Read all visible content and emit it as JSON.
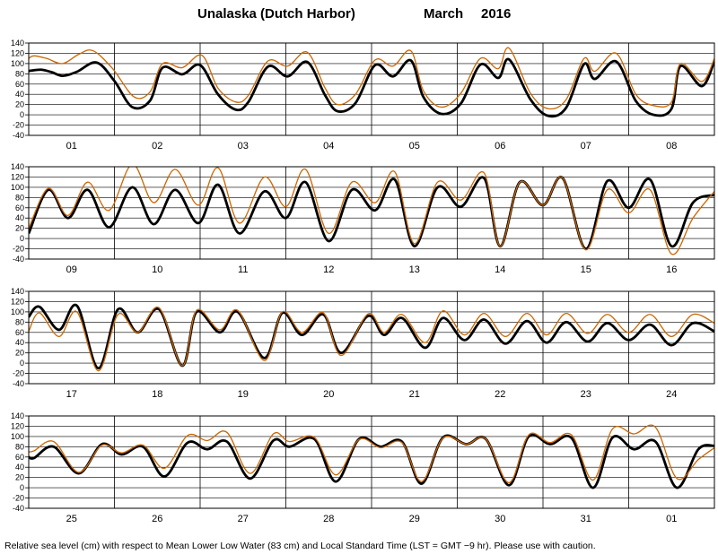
{
  "chart_data": {
    "type": "line",
    "title": "Unalaska (Dutch Harbor)",
    "month": "March",
    "year": "2016",
    "ylabel": "",
    "ylim": [
      -40,
      140
    ],
    "yticks": [
      -40,
      -20,
      0,
      20,
      40,
      60,
      80,
      100,
      120,
      140
    ],
    "grid": true,
    "footnote": "Relative sea level (cm) with respect to Mean Lower Low Water (83 cm) and Local Standard Time (LST = GMT −9 hr). Please use with caution.",
    "panels": [
      {
        "days": [
          "01",
          "02",
          "03",
          "04",
          "05",
          "06",
          "07",
          "08"
        ],
        "series": [
          {
            "color": "#000000",
            "x": [
              0,
              0.5,
              3.5,
              6.5,
              9.5,
              13.5,
              19.0,
              24.0,
              29.0,
              34.0,
              37.5,
              43.0,
              48.0,
              53.0,
              58.0,
              61.5,
              67.0,
              72.5,
              78.0,
              83.0,
              86.5,
              91.5,
              97.0,
              102.0,
              107.0,
              110.5,
              115.5,
              121.0,
              126.5,
              131.5,
              134.5,
              140.5,
              145.5,
              150.5,
              155.5,
              158.5,
              164.5,
              170.0,
              175.0,
              180.0,
              182.5,
              188.5,
              192.0
            ],
            "y": [
              85,
              86,
              88,
              83,
              76,
              84,
              102,
              66,
              15,
              28,
              92,
              79,
              97,
              40,
              10,
              25,
              94,
              75,
              103,
              38,
              7,
              23,
              97,
              75,
              106,
              35,
              2,
              22,
              98,
              72,
              108,
              30,
              -2,
              14,
              99,
              70,
              104,
              27,
              0,
              12,
              95,
              56,
              105
            ]
          },
          {
            "color": "#cc6600",
            "x": [
              0,
              1.5,
              5.0,
              9.5,
              14.0,
              18.0,
              23.5,
              29.5,
              34.0,
              37.5,
              43.0,
              48.5,
              53.0,
              58.0,
              61.5,
              67.0,
              72.5,
              78.0,
              83.0,
              86.5,
              91.5,
              97.0,
              102.0,
              107.0,
              110.5,
              115.5,
              121.0,
              126.5,
              131.5,
              134.5,
              140.5,
              145.5,
              150.5,
              155.5,
              158.5,
              164.5,
              170.0,
              175.0,
              180.0,
              182.5,
              188.5,
              192.0
            ],
            "y": [
              110,
              115,
              110,
              100,
              118,
              125,
              90,
              35,
              45,
              100,
              92,
              116,
              52,
              25,
              38,
              105,
              95,
              122,
              52,
              20,
              40,
              107,
              95,
              125,
              47,
              15,
              42,
              110,
              90,
              130,
              42,
              12,
              30,
              110,
              85,
              120,
              40,
              18,
              25,
              100,
              65,
              110
            ]
          }
        ]
      },
      {
        "days": [
          "09",
          "10",
          "11",
          "12",
          "13",
          "14",
          "15",
          "16"
        ],
        "series": [
          {
            "color": "#000000",
            "x": [
              0,
              5.5,
              11.0,
              16.5,
              22.5,
              29.0,
              35.0,
              41.0,
              47.5,
              53.0,
              59.0,
              66.0,
              72.0,
              77.5,
              84.0,
              90.5,
              97.0,
              102.5,
              108.0,
              114.5,
              121.0,
              127.5,
              132.0,
              137.5,
              144.0,
              149.5,
              156.0,
              162.0,
              168.0,
              174.0,
              180.0,
              186.0,
              192.0
            ],
            "y": [
              10,
              95,
              40,
              95,
              22,
              100,
              28,
              95,
              30,
              105,
              10,
              92,
              40,
              110,
              -5,
              95,
              55,
              115,
              -15,
              100,
              62,
              118,
              -15,
              110,
              65,
              118,
              -20,
              112,
              60,
              115,
              -15,
              70,
              85
            ]
          },
          {
            "color": "#cc6600",
            "x": [
              0,
              5.5,
              11.0,
              16.5,
              22.5,
              29.0,
              35.0,
              41.0,
              47.5,
              53.0,
              59.0,
              66.0,
              72.0,
              77.5,
              84.0,
              90.5,
              97.0,
              102.5,
              108.0,
              114.5,
              121.0,
              127.5,
              132.0,
              137.5,
              144.0,
              149.5,
              156.0,
              162.0,
              168.0,
              174.0,
              180.0,
              186.0,
              192.0
            ],
            "y": [
              20,
              98,
              45,
              110,
              55,
              145,
              70,
              135,
              65,
              138,
              30,
              120,
              62,
              135,
              10,
              110,
              70,
              130,
              -10,
              110,
              75,
              128,
              -15,
              110,
              65,
              118,
              -22,
              95,
              50,
              95,
              -30,
              40,
              92
            ]
          }
        ]
      },
      {
        "days": [
          "17",
          "18",
          "19",
          "20",
          "21",
          "22",
          "23",
          "24"
        ],
        "series": [
          {
            "color": "#000000",
            "x": [
              0,
              3.0,
              8.5,
              13.5,
              19.5,
              25.0,
              30.5,
              36.5,
              43.0,
              47.0,
              53.5,
              58.5,
              66.0,
              71.0,
              76.5,
              82.5,
              87.5,
              95.0,
              99.5,
              104.5,
              111.0,
              116.0,
              122.0,
              127.5,
              133.5,
              139.5,
              145.0,
              150.5,
              156.5,
              162.0,
              168.0,
              174.0,
              180.0,
              186.0,
              192.0
            ],
            "y": [
              90,
              110,
              65,
              112,
              -10,
              105,
              60,
              105,
              -5,
              100,
              60,
              100,
              10,
              98,
              55,
              95,
              20,
              92,
              55,
              88,
              30,
              88,
              45,
              85,
              38,
              82,
              40,
              80,
              42,
              78,
              45,
              75,
              35,
              78,
              62
            ]
          },
          {
            "color": "#cc6600",
            "x": [
              0,
              3.0,
              8.5,
              13.5,
              19.5,
              25.0,
              30.5,
              36.5,
              43.0,
              47.0,
              53.5,
              58.5,
              66.0,
              71.0,
              76.5,
              82.5,
              87.5,
              95.0,
              99.5,
              104.5,
              111.0,
              116.0,
              122.0,
              127.5,
              133.5,
              139.5,
              145.0,
              150.5,
              156.5,
              162.0,
              168.0,
              174.0,
              180.0,
              186.0,
              192.0
            ],
            "y": [
              62,
              98,
              52,
              100,
              -15,
              95,
              60,
              108,
              -5,
              103,
              65,
              103,
              5,
              100,
              60,
              98,
              15,
              96,
              60,
              95,
              40,
              102,
              55,
              97,
              52,
              97,
              55,
              97,
              58,
              95,
              60,
              95,
              52,
              95,
              78
            ]
          }
        ]
      },
      {
        "days": [
          "25",
          "26",
          "27",
          "28",
          "29",
          "30",
          "31",
          "01"
        ],
        "series": [
          {
            "color": "#000000",
            "x": [
              0,
              1.5,
              7.0,
              14.0,
              20.5,
              26.0,
              32.0,
              38.0,
              44.5,
              50.0,
              55.5,
              62.0,
              68.5,
              73.0,
              80.0,
              86.0,
              92.5,
              98.5,
              104.5,
              110.0,
              116.0,
              122.5,
              128.0,
              134.5,
              140.0,
              146.0,
              152.0,
              158.0,
              163.5,
              169.5,
              175.5,
              181.5,
              187.5,
              192.0
            ],
            "y": [
              60,
              58,
              80,
              28,
              85,
              65,
              80,
              22,
              88,
              75,
              90,
              18,
              92,
              80,
              95,
              12,
              95,
              80,
              90,
              8,
              98,
              85,
              95,
              5,
              100,
              85,
              97,
              0,
              98,
              75,
              90,
              0,
              75,
              82
            ]
          },
          {
            "color": "#cc6600",
            "x": [
              0,
              1.5,
              7.0,
              14.0,
              20.5,
              26.0,
              32.0,
              38.0,
              44.5,
              50.0,
              55.5,
              62.0,
              68.5,
              73.0,
              80.0,
              86.0,
              92.5,
              98.5,
              104.5,
              110.0,
              116.0,
              122.5,
              128.0,
              134.5,
              140.0,
              146.0,
              152.0,
              158.0,
              163.5,
              169.5,
              175.5,
              181.5,
              187.5,
              192.0
            ],
            "y": [
              70,
              72,
              90,
              30,
              83,
              68,
              83,
              38,
              102,
              92,
              108,
              28,
              105,
              90,
              98,
              25,
              94,
              78,
              88,
              12,
              97,
              85,
              95,
              10,
              103,
              88,
              103,
              15,
              115,
              105,
              118,
              18,
              55,
              78
            ]
          }
        ]
      }
    ]
  }
}
